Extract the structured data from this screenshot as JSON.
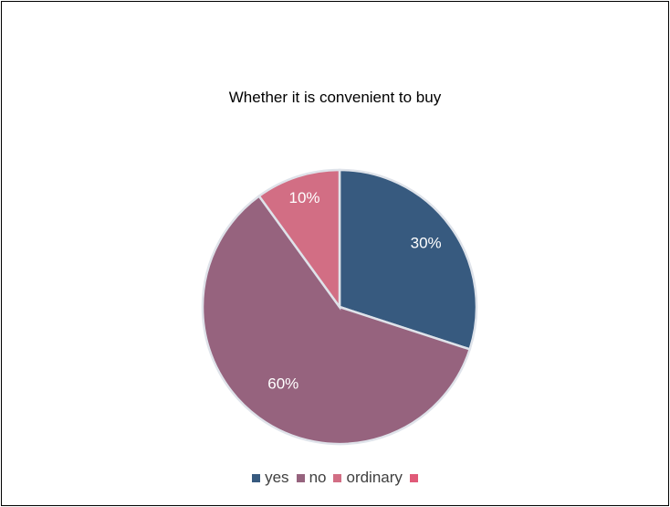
{
  "chart_data": {
    "type": "pie",
    "title": "Whether it is convenient to buy",
    "categories": [
      "yes",
      "no",
      "ordinary",
      ""
    ],
    "values": [
      30,
      60,
      10,
      0
    ],
    "labels": [
      "30%",
      "60%",
      "10%"
    ],
    "colors": [
      "#375a7f",
      "#96637e",
      "#d26e84",
      "#e05a78"
    ],
    "legend_position": "bottom"
  }
}
